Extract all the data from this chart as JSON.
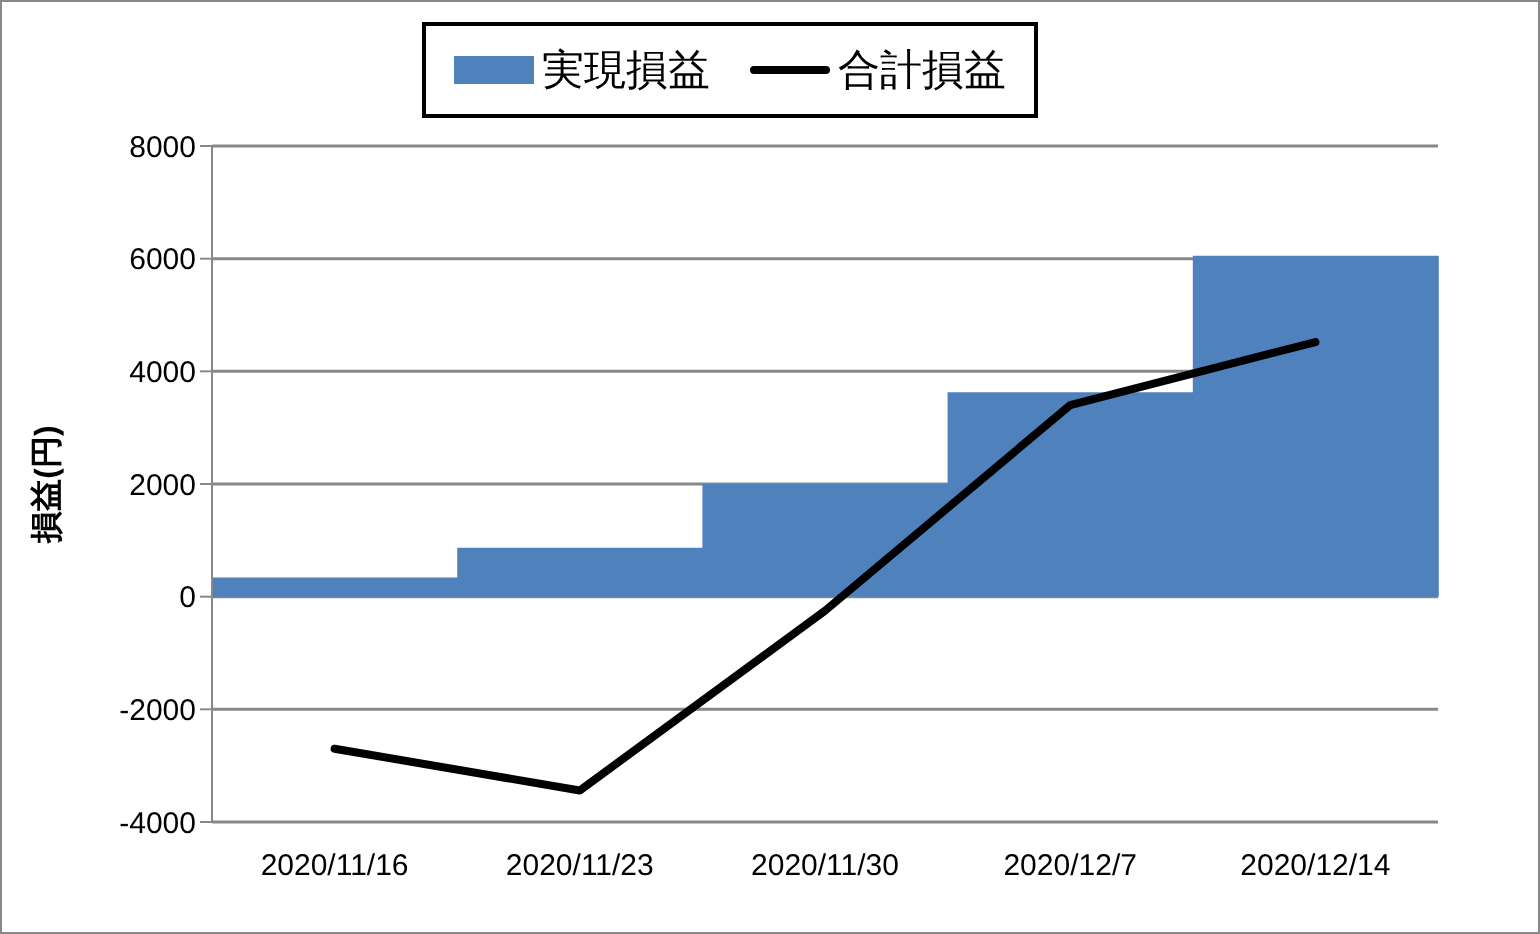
{
  "chart_data": {
    "type": "bar",
    "ylabel": "損益(円)",
    "categories": [
      "2020/11/16",
      "2020/11/23",
      "2020/11/30",
      "2020/12/7",
      "2020/12/14"
    ],
    "series": [
      {
        "name": "実現損益",
        "color": "#4f81bd",
        "values": [
          340,
          870,
          2000,
          3630,
          6050
        ]
      },
      {
        "name": "合計損益",
        "type": "line",
        "color": "#000000",
        "values": [
          -2700,
          -3440,
          -250,
          3400,
          4520
        ]
      }
    ],
    "ylim": [
      -4000,
      8000
    ],
    "yticks": [
      -4000,
      -2000,
      0,
      2000,
      4000,
      6000,
      8000
    ],
    "grid": "y",
    "legend": "top",
    "marker": "none",
    "line_style": "solid"
  }
}
